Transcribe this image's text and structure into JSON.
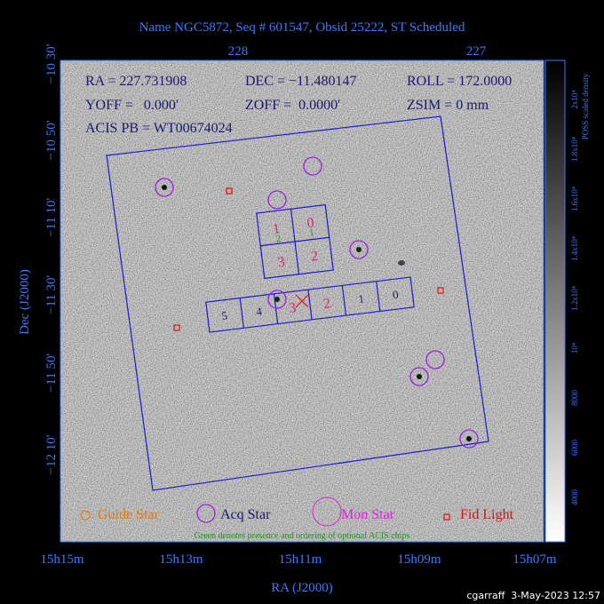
{
  "title": "Name NGC5872, Seq # 601547, Obsid 25222, ST Scheduled",
  "axes": {
    "top_ticks": [
      "228",
      "227"
    ],
    "left_ticks": [
      "−10 30'",
      "−10 50'",
      "−11 10'",
      "−11 30'",
      "−11 50'",
      "−12 10'"
    ],
    "bottom_ticks": [
      "15h15m",
      "15h13m",
      "15h11m",
      "15h09m",
      "15h07m"
    ],
    "x_label": "RA (J2000)",
    "y_label": "Dec (J2000)"
  },
  "info": {
    "ra": "RA = 227.731908",
    "dec": "DEC = −11.480147",
    "roll": "ROLL = 172.0000",
    "yoff": "YOFF =   0.000'",
    "zoff": "ZOFF =  0.0000'",
    "zsim": "ZSIM = 0 mm",
    "pb": "ACIS PB = WT00674024"
  },
  "chips": {
    "i_array": [
      "0",
      "1",
      "2",
      "3"
    ],
    "optional": [
      "1",
      "2"
    ],
    "s_array": [
      "5",
      "4",
      "3",
      "2",
      "1",
      "0"
    ]
  },
  "legend": [
    "Guide Star",
    "Acq Star",
    "Mon Star",
    "Fid Light"
  ],
  "note": "Green denotes presence and ordering of optional ACIS chips",
  "colorbar": {
    "label": "POSS scaled density",
    "ticks": [
      "4000",
      "6000",
      "8000",
      "10⁴",
      "1.2x10⁴",
      "1.4x10⁴",
      "1.6x10⁴",
      "1.8x10⁴",
      "2x10⁴"
    ]
  },
  "footer": "cgarraff  3-May-2023 12:57"
}
